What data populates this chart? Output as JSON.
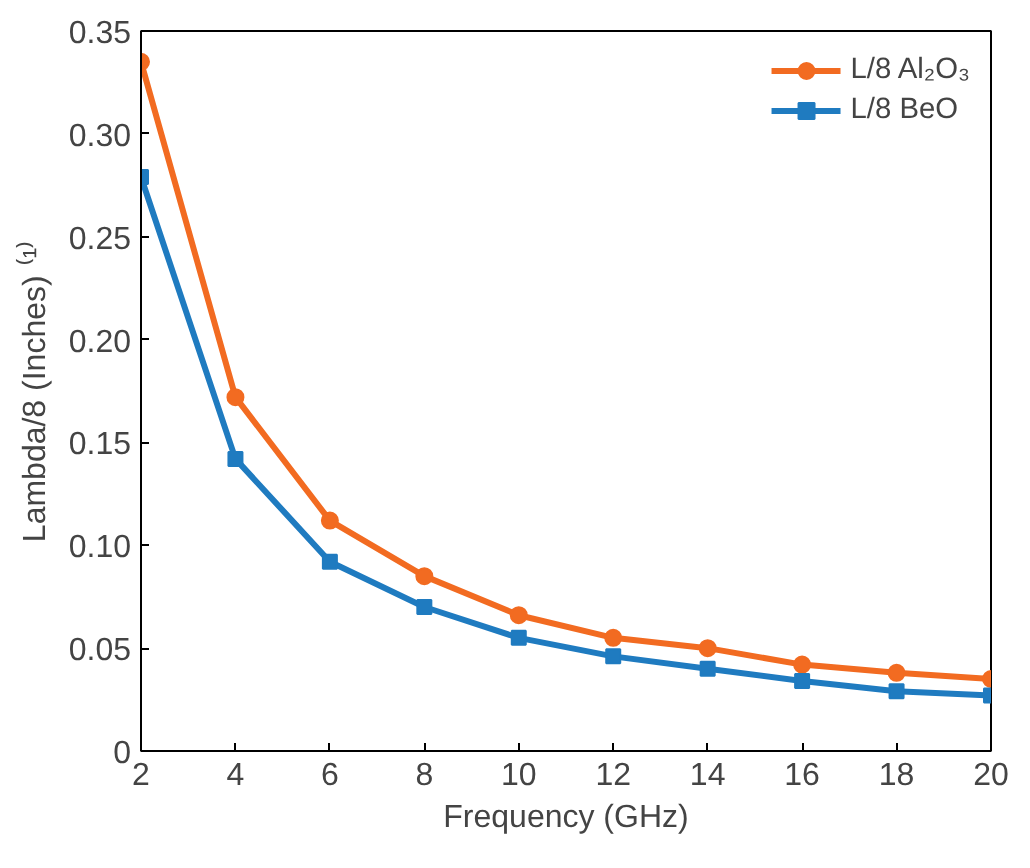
{
  "chart_data": {
    "type": "line",
    "xlabel": "Frequency (GHz)",
    "ylabel": "Lambda/8 (Inches) ⁽¹⁾",
    "x": [
      2,
      4,
      6,
      8,
      10,
      12,
      14,
      16,
      18,
      20
    ],
    "series": [
      {
        "name": "L/8 Al₂O₃",
        "color": "#f26b21",
        "marker": "circle",
        "values": [
          0.335,
          0.172,
          0.112,
          0.085,
          0.066,
          0.055,
          0.05,
          0.042,
          0.038,
          0.035
        ]
      },
      {
        "name": "L/8 BeO",
        "color": "#1f7bc0",
        "marker": "square",
        "values": [
          0.279,
          0.142,
          0.092,
          0.07,
          0.055,
          0.046,
          0.04,
          0.034,
          0.029,
          0.027
        ]
      }
    ],
    "xlim": [
      2,
      20
    ],
    "xticks": [
      2,
      4,
      6,
      8,
      10,
      12,
      14,
      16,
      18,
      20
    ],
    "ylim": [
      0,
      0.35
    ],
    "yticks": [
      {
        "value": 0,
        "label": "0"
      },
      {
        "value": 0.05,
        "label": "0.05"
      },
      {
        "value": 0.1,
        "label": "0.10"
      },
      {
        "value": 0.15,
        "label": "0.15"
      },
      {
        "value": 0.2,
        "label": "0.20"
      },
      {
        "value": 0.25,
        "label": "0.25"
      },
      {
        "value": 0.3,
        "label": "0.30"
      },
      {
        "value": 0.35,
        "label": "0.35"
      }
    ],
    "grid": false,
    "legend": "top right",
    "line_style": "solid"
  }
}
